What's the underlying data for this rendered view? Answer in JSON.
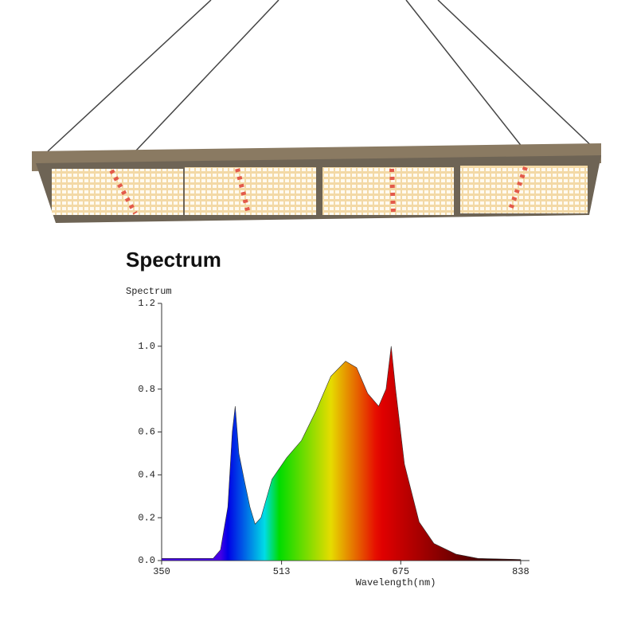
{
  "chart_data": {
    "type": "area",
    "title": "Spectrum",
    "y_label": "Spectrum",
    "x_label": "Wavelength(nm)",
    "x": [
      350,
      420,
      430,
      440,
      446,
      450,
      455,
      462,
      470,
      477,
      485,
      500,
      520,
      540,
      560,
      580,
      600,
      615,
      630,
      645,
      655,
      662,
      668,
      680,
      700,
      720,
      750,
      780,
      838
    ],
    "values": [
      0.01,
      0.01,
      0.05,
      0.25,
      0.6,
      0.72,
      0.5,
      0.38,
      0.25,
      0.17,
      0.2,
      0.38,
      0.48,
      0.56,
      0.7,
      0.86,
      0.93,
      0.9,
      0.78,
      0.72,
      0.8,
      1.0,
      0.8,
      0.45,
      0.18,
      0.08,
      0.03,
      0.01,
      0.005
    ],
    "xlim": [
      350,
      850
    ],
    "ylim": [
      0,
      1.2
    ],
    "xticks": [
      350,
      513,
      675,
      838
    ],
    "yticks": [
      {
        "value": 0,
        "label": "0.0"
      },
      0.2,
      0.4,
      0.6,
      0.8,
      {
        "value": 1,
        "label": "1.0"
      },
      1.2
    ]
  }
}
